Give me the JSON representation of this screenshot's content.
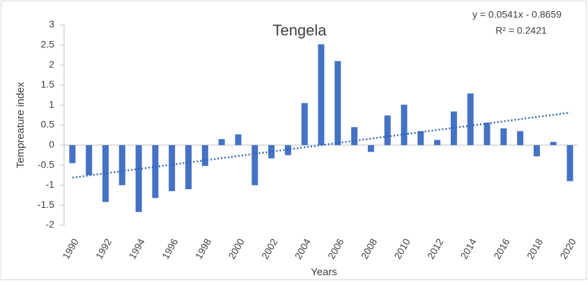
{
  "chart_data": {
    "type": "bar",
    "title": "Tengela",
    "x_label": "Years",
    "y_label": "Tempreature index",
    "categories": [
      "1990",
      null,
      "1992",
      null,
      "1994",
      null,
      "1996",
      null,
      "1998",
      null,
      "2000",
      null,
      "2002",
      null,
      "2004",
      null,
      "2006",
      null,
      "2008",
      null,
      "2010",
      null,
      "2012",
      null,
      "2014",
      null,
      "2016",
      null,
      "2018",
      null,
      "2020"
    ],
    "values": [
      -0.45,
      -0.75,
      -1.42,
      -1.0,
      -1.67,
      -1.32,
      -1.15,
      -1.1,
      -0.52,
      0.15,
      0.27,
      -1.0,
      -0.33,
      -0.25,
      1.05,
      2.52,
      2.1,
      0.45,
      -0.17,
      0.74,
      1.01,
      0.35,
      0.13,
      0.84,
      1.29,
      0.56,
      0.42,
      0.35,
      -0.28,
      0.08,
      -0.9
    ],
    "color": "#4472c4",
    "ylim": [
      -2,
      3
    ],
    "yticks": [
      -2,
      -1.5,
      -1,
      -0.5,
      0,
      0.5,
      1,
      1.5,
      2,
      2.5,
      3
    ],
    "trendline": {
      "equation": "y = 0.0541x - 0.8659",
      "r_squared": "R² = 0.2421",
      "slope": 0.0541,
      "intercept": -0.8659,
      "color": "#2e62b0"
    }
  }
}
